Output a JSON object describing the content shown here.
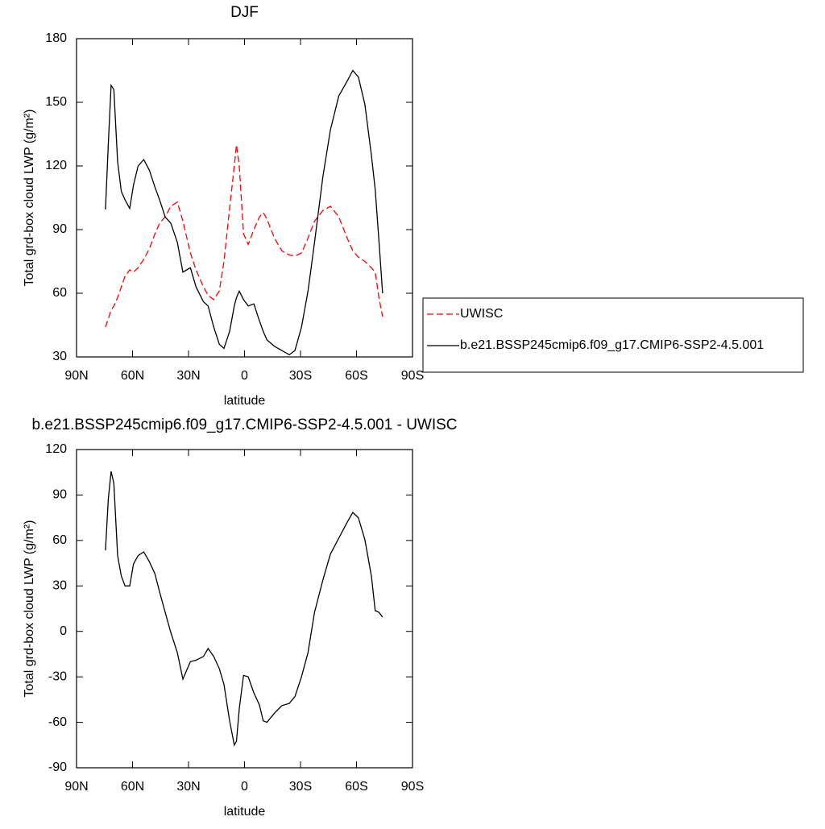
{
  "chart_data": [
    {
      "type": "line",
      "title": "DJF",
      "xlabel": "latitude",
      "ylabel": "Total grd-box cloud LWP (g/m²)",
      "x": [
        74.5,
        73,
        71.5,
        70,
        68,
        66,
        64,
        61.5,
        59.5,
        57,
        54,
        51,
        48,
        45.5,
        42.5,
        39.5,
        36,
        33,
        29,
        26,
        22,
        19.5,
        16.5,
        13.5,
        11,
        8,
        5.5,
        4.3,
        2.8,
        0.5,
        -2,
        -5,
        -8,
        -10,
        -12,
        -16,
        -20,
        -24,
        -27,
        -30.5,
        -34,
        -37.5,
        -42,
        -46,
        -50.5,
        -55,
        -58,
        -61,
        -64.5,
        -68,
        -70,
        -72,
        -74
      ],
      "series": [
        {
          "name": "UWISC",
          "color": "#ff0000",
          "line_style": "dashed",
          "values": [
            44,
            48,
            52,
            54,
            58,
            63,
            68,
            71,
            70,
            72,
            76,
            81,
            88,
            93,
            96,
            101,
            103,
            94,
            79,
            71,
            63,
            59,
            57,
            61,
            75,
            100,
            120,
            130,
            120,
            88,
            83,
            90,
            96,
            98,
            95,
            86,
            80,
            78,
            77.5,
            79,
            86,
            94,
            99,
            101,
            96,
            86,
            80,
            77,
            75,
            72,
            70,
            58,
            49
          ]
        },
        {
          "name": "b.e21.BSSP245cmip6.f09_g17.CMIP6-SSP2-4.5.001",
          "color": "#000000",
          "line_style": "solid",
          "values": [
            99.5,
            130,
            158,
            156,
            122,
            108,
            104,
            100,
            111,
            120,
            123,
            118,
            110,
            104,
            96,
            93,
            84,
            70,
            72,
            63,
            56,
            54,
            44,
            36,
            34,
            42,
            54,
            58,
            61,
            57,
            54,
            55,
            47,
            42,
            38,
            35,
            33,
            31,
            33,
            44,
            61,
            84,
            115,
            137,
            153,
            160,
            165,
            162,
            149,
            125,
            109,
            85,
            60
          ]
        }
      ],
      "xlim": [
        90,
        -90
      ],
      "xticks": [
        {
          "value": 90,
          "label": "90N"
        },
        {
          "value": 60,
          "label": "60N"
        },
        {
          "value": 30,
          "label": "30N"
        },
        0,
        {
          "value": -30,
          "label": "30S"
        },
        {
          "value": -60,
          "label": "60S"
        },
        {
          "value": -90,
          "label": "90S"
        }
      ],
      "ylim": [
        30,
        180
      ],
      "yticks": [
        30,
        60,
        90,
        120,
        150,
        180
      ],
      "legend": "right"
    },
    {
      "type": "line",
      "title": "b.e21.BSSP245cmip6.f09_g17.CMIP6-SSP2-4.5.001 - UWISC",
      "xlabel": "latitude",
      "ylabel": "Total grd-box cloud LWP (g/m²)",
      "x": [
        74.5,
        73,
        71.5,
        70,
        68,
        66,
        64,
        61.5,
        59.5,
        57,
        54,
        51,
        48,
        45.5,
        42.5,
        39.5,
        36,
        33,
        29,
        26,
        22,
        19.5,
        16.5,
        13.5,
        11,
        8,
        5.5,
        4.3,
        2.8,
        0.5,
        -2,
        -5,
        -8,
        -10,
        -12,
        -16,
        -20,
        -24,
        -27,
        -30.5,
        -34,
        -37.5,
        -42,
        -46,
        -50.5,
        -55,
        -58,
        -61,
        -64.5,
        -68,
        -70,
        -72,
        -74
      ],
      "color": "#000000",
      "values": [
        53.5,
        87,
        105.6,
        97.7,
        50,
        36.5,
        30,
        30,
        44.5,
        50,
        52.5,
        46,
        38,
        26,
        12.6,
        -0.7,
        -14,
        -31.5,
        -20,
        -19,
        -16.6,
        -11.3,
        -16.6,
        -24.6,
        -35,
        -59,
        -75,
        -72.5,
        -51,
        -29,
        -30,
        -40.6,
        -48.6,
        -59,
        -60,
        -54,
        -49,
        -47.5,
        -43,
        -30,
        -14,
        12.6,
        34,
        51,
        61.5,
        72,
        78.5,
        75,
        60.5,
        36.5,
        13.7,
        12.6,
        9.4
      ],
      "xlim": [
        90,
        -90
      ],
      "xticks": [
        {
          "value": 90,
          "label": "90N"
        },
        {
          "value": 60,
          "label": "60N"
        },
        {
          "value": 30,
          "label": "30N"
        },
        0,
        {
          "value": -30,
          "label": "30S"
        },
        {
          "value": -60,
          "label": "60S"
        },
        {
          "value": -90,
          "label": "90S"
        }
      ],
      "ylim": [
        -90,
        120
      ],
      "yticks": [
        -90,
        -60,
        -30,
        0,
        30,
        60,
        90,
        120
      ]
    }
  ]
}
